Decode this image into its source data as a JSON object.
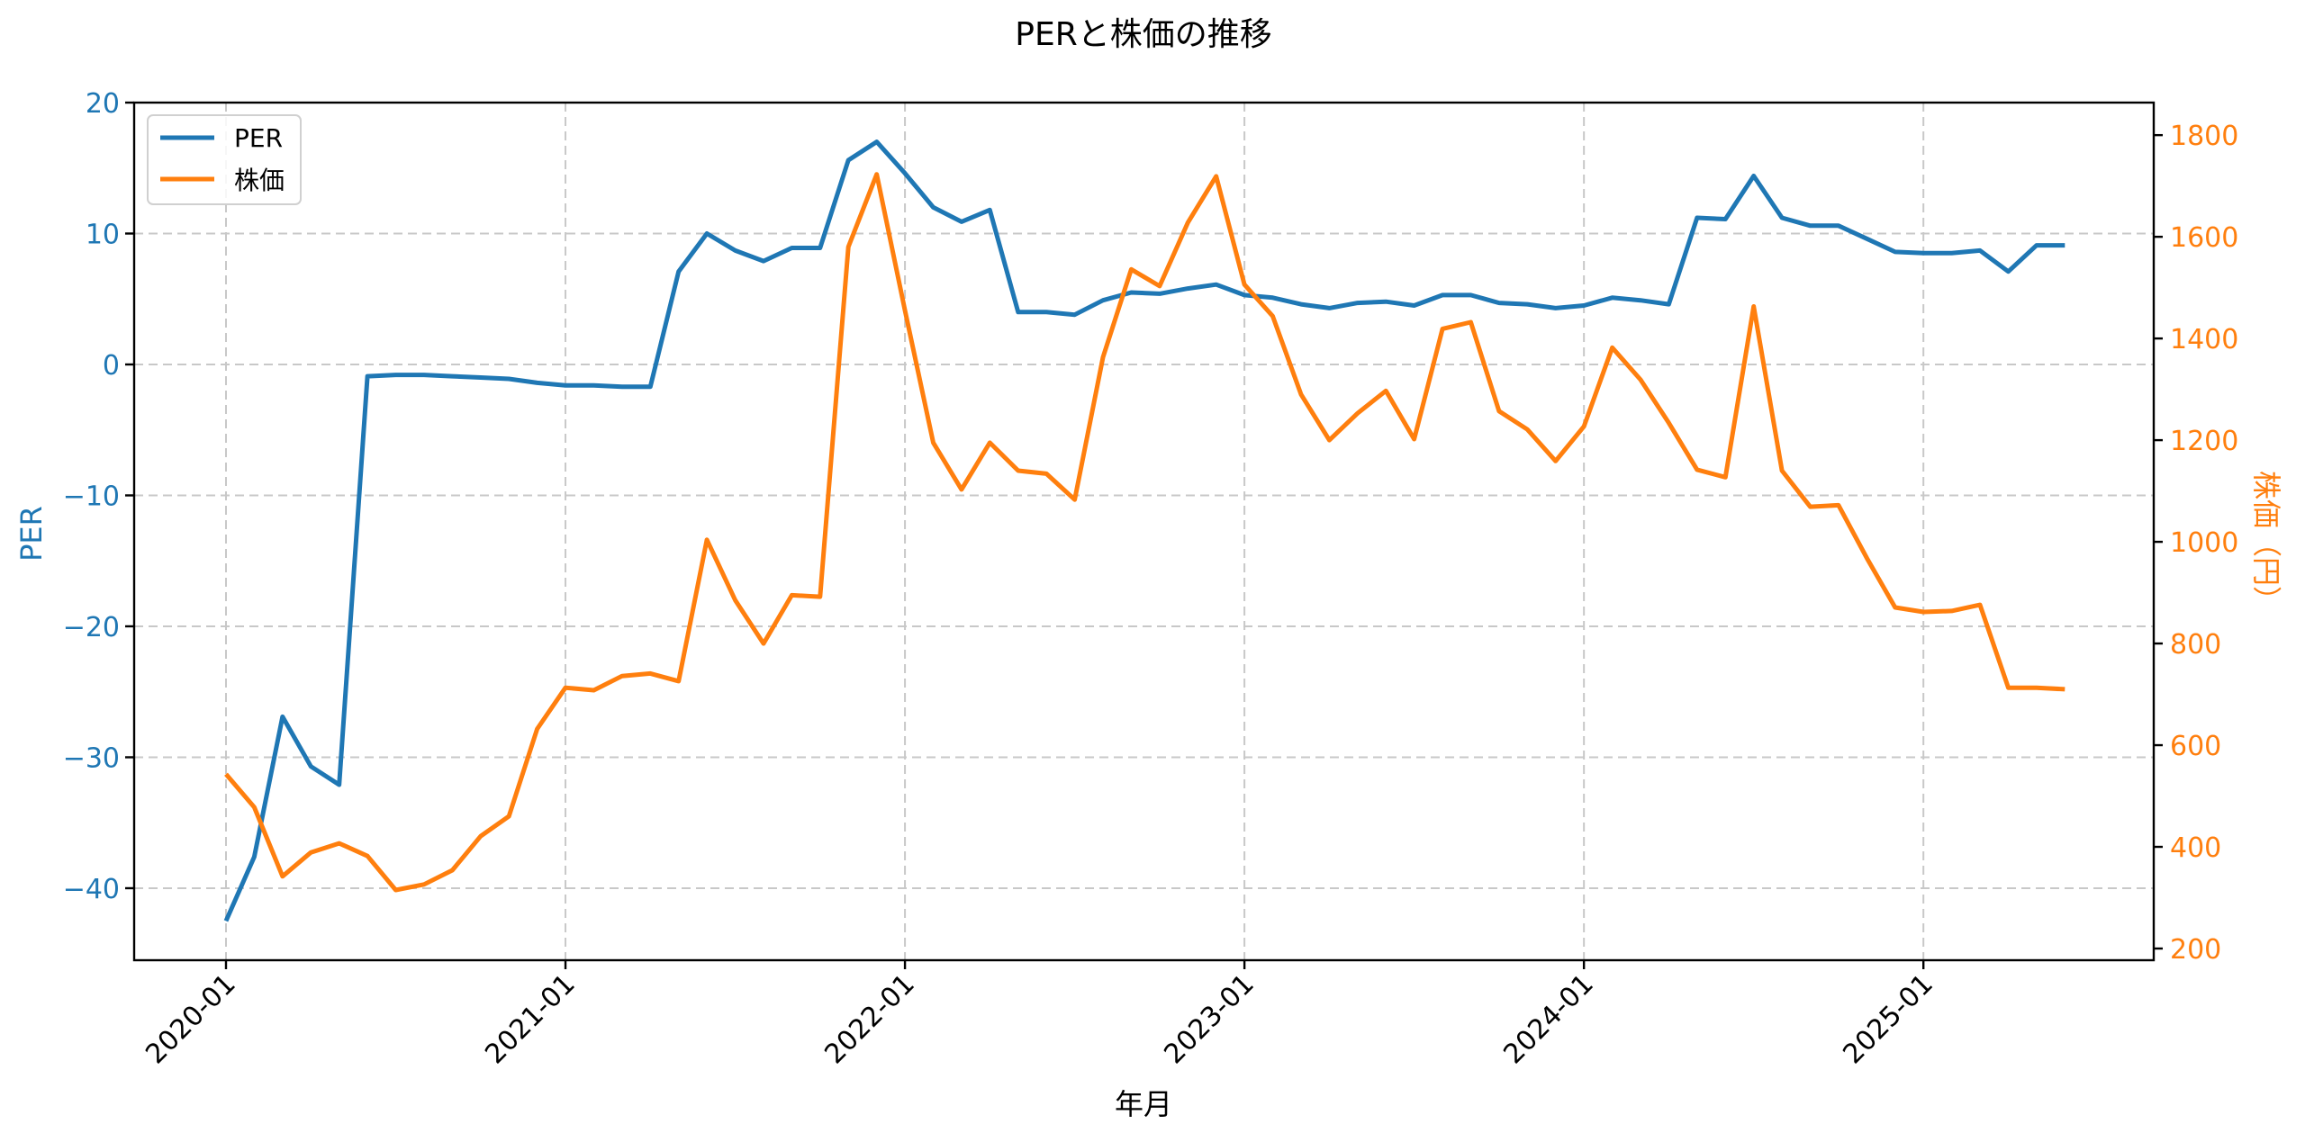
{
  "chart_data": {
    "type": "line",
    "title": "PERと株価の推移",
    "xlabel": "年月",
    "ylabel": "PER",
    "y2label": "株価（円）",
    "grid": true,
    "legend": {
      "position": "upper left",
      "entries": [
        "PER",
        "株価"
      ]
    },
    "xticks": [
      "2020-01",
      "2021-01",
      "2022-01",
      "2023-01",
      "2024-01",
      "2025-01"
    ],
    "yticks": [
      -40,
      -30,
      -20,
      -10,
      0,
      10,
      20
    ],
    "y2ticks": [
      200,
      400,
      600,
      800,
      1000,
      1200,
      1400,
      1600,
      1800
    ],
    "ylim": [
      -45.5,
      20.0
    ],
    "y2lim": [
      177,
      1864
    ],
    "x": [
      "2020-01",
      "2020-02",
      "2020-03",
      "2020-04",
      "2020-05",
      "2020-06",
      "2020-07",
      "2020-08",
      "2020-09",
      "2020-10",
      "2020-11",
      "2020-12",
      "2021-01",
      "2021-02",
      "2021-03",
      "2021-04",
      "2021-05",
      "2021-06",
      "2021-07",
      "2021-08",
      "2021-09",
      "2021-10",
      "2021-11",
      "2021-12",
      "2022-01",
      "2022-02",
      "2022-03",
      "2022-04",
      "2022-05",
      "2022-06",
      "2022-07",
      "2022-08",
      "2022-09",
      "2022-10",
      "2022-11",
      "2022-12",
      "2023-01",
      "2023-02",
      "2023-03",
      "2023-04",
      "2023-05",
      "2023-06",
      "2023-07",
      "2023-08",
      "2023-09",
      "2023-10",
      "2023-11",
      "2023-12",
      "2024-01",
      "2024-02",
      "2024-03",
      "2024-04",
      "2024-05",
      "2024-06",
      "2024-07",
      "2024-08",
      "2024-09",
      "2024-10",
      "2024-11",
      "2024-12",
      "2025-01",
      "2025-02",
      "2025-03",
      "2025-04",
      "2025-05",
      "2025-06"
    ],
    "series": [
      {
        "name": "PER",
        "axis": "left",
        "color": "#1f77b4",
        "values": [
          -42.5,
          -37.6,
          -26.9,
          -30.7,
          -32.1,
          -0.9,
          -0.8,
          -0.8,
          -0.9,
          -1.0,
          -1.1,
          -1.4,
          -1.6,
          -1.6,
          -1.7,
          -1.7,
          7.1,
          10.0,
          8.7,
          7.9,
          8.9,
          8.9,
          15.6,
          17.0,
          14.6,
          12.0,
          10.9,
          11.8,
          4.0,
          4.0,
          3.8,
          4.9,
          5.5,
          5.4,
          5.8,
          6.1,
          5.3,
          5.1,
          4.6,
          4.3,
          4.7,
          4.8,
          4.5,
          5.3,
          5.3,
          4.7,
          4.6,
          4.3,
          4.5,
          5.1,
          4.9,
          4.6,
          11.2,
          11.1,
          14.4,
          11.2,
          10.6,
          10.6,
          9.6,
          8.6,
          8.5,
          8.5,
          8.7,
          7.1,
          9.1,
          9.1
        ]
      },
      {
        "name": "株価",
        "axis": "right",
        "color": "#ff7f0e",
        "values": [
          543,
          478,
          342,
          389,
          407,
          382,
          315,
          326,
          354,
          421,
          460,
          632,
          713,
          708,
          736,
          741,
          726,
          1004,
          885,
          800,
          895,
          892,
          1580,
          1723,
          1455,
          1195,
          1103,
          1195,
          1140,
          1134,
          1083,
          1363,
          1536,
          1503,
          1628,
          1719,
          1506,
          1444,
          1290,
          1200,
          1253,
          1297,
          1202,
          1419,
          1432,
          1257,
          1221,
          1159,
          1227,
          1382,
          1319,
          1234,
          1142,
          1127,
          1463,
          1140,
          1069,
          1072,
          968,
          871,
          862,
          864,
          876,
          713,
          713,
          710
        ]
      }
    ]
  },
  "colors": {
    "per": "#1f77b4",
    "price": "#ff7f0e",
    "grid": "#c8c8c8",
    "axis": "#000000"
  }
}
